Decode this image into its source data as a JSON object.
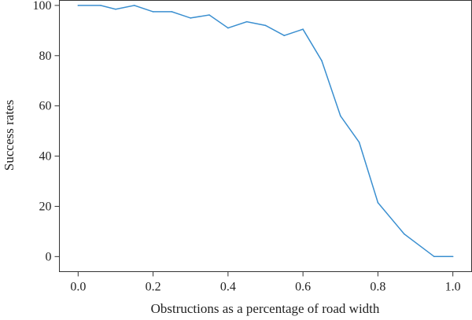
{
  "chart_data": {
    "type": "line",
    "title": "",
    "xlabel": "Obstructions as a percentage of road width",
    "ylabel": "Success rates",
    "xlim": [
      -0.05,
      1.05
    ],
    "ylim": [
      -6,
      102
    ],
    "xticks": [
      "0.0",
      "0.2",
      "0.4",
      "0.6",
      "0.8",
      "1.0"
    ],
    "yticks": [
      "0",
      "20",
      "40",
      "60",
      "80",
      "100"
    ],
    "grid": false,
    "legend": "none",
    "line_color": "#3a8fd0",
    "series": [
      {
        "x": [
          0.0,
          0.06,
          0.1,
          0.15,
          0.2,
          0.25,
          0.3,
          0.35,
          0.4,
          0.45,
          0.5,
          0.55,
          0.6,
          0.65,
          0.7,
          0.75,
          0.8,
          0.87,
          0.95,
          1.0
        ],
        "values": [
          100,
          100,
          98.5,
          100,
          97.5,
          97.5,
          95,
          96.2,
          91,
          93.5,
          92,
          88,
          90.5,
          78,
          56,
          45.5,
          21.5,
          9,
          0,
          0
        ]
      }
    ]
  }
}
